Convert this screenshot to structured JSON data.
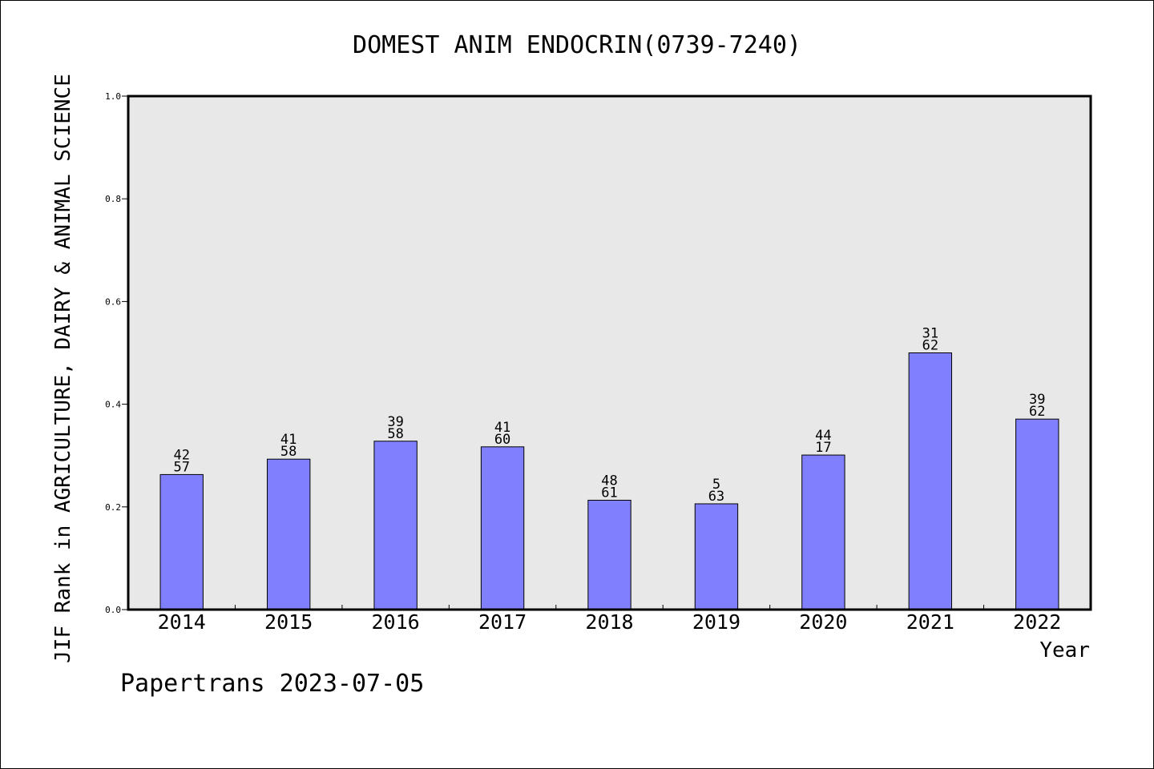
{
  "chart_data": {
    "type": "bar",
    "title": "DOMEST ANIM ENDOCRIN(0739-7240)",
    "xlabel": "Year",
    "ylabel": "JIF Rank in AGRICULTURE, DAIRY & ANIMAL SCIENCE",
    "categories": [
      "2014",
      "2015",
      "2016",
      "2017",
      "2018",
      "2019",
      "2020",
      "2021",
      "2022"
    ],
    "values": [
      0.263,
      0.293,
      0.328,
      0.317,
      0.213,
      0.206,
      0.301,
      0.5,
      0.371
    ],
    "labels_top": [
      "42",
      "41",
      "39",
      "41",
      "48",
      "5",
      "44",
      "31",
      "39"
    ],
    "labels_bottom": [
      "57",
      "58",
      "58",
      "60",
      "61",
      "63",
      "17",
      "62",
      "62"
    ],
    "ylim": [
      0,
      1.0
    ],
    "yticks": [
      "0.0",
      "0.2",
      "0.4",
      "0.6",
      "0.8",
      "1.0"
    ],
    "grid": false,
    "colors": {
      "bar": "#8080ff",
      "plot_bg": "#e8e8e8"
    }
  },
  "footer": "Papertrans 2023-07-05"
}
